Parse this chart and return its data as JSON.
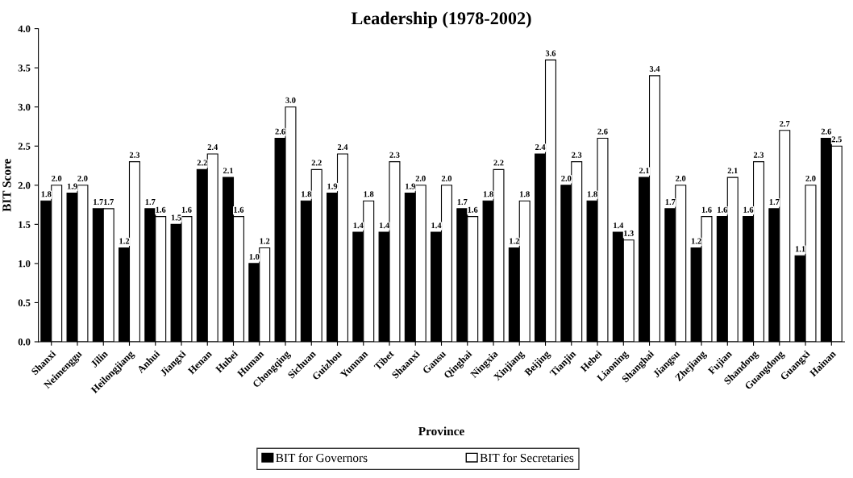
{
  "chart_data": {
    "type": "bar",
    "title": "Leadership (1978-2002)",
    "xlabel": "Province",
    "ylabel": "BIT Score",
    "categories": [
      "Shanxi",
      "Neimenggu",
      "Jilin",
      "Heilongjiang",
      "Anhui",
      "Jiangxi",
      "Henan",
      "Hubei",
      "Human",
      "Chongqing",
      "Sichuan",
      "Guizhou",
      "Yunnan",
      "Tibet",
      "Shaanxi",
      "Gansu",
      "Qinghai",
      "Ningxia",
      "Xinjiang",
      "Beijing",
      "Tianjin",
      "Hebei",
      "Liaoning",
      "Shanghai",
      "Jiangsu",
      "Zhejiang",
      "Fujian",
      "Shandong",
      "Guangdong",
      "Guangxi",
      "Hainan"
    ],
    "series": [
      {
        "name": "BIT for Governors",
        "color": "#000000",
        "values": [
          1.8,
          1.9,
          1.7,
          1.2,
          1.7,
          1.5,
          2.2,
          2.1,
          1.0,
          2.6,
          1.8,
          1.9,
          1.4,
          1.4,
          1.9,
          1.4,
          1.7,
          1.8,
          1.2,
          2.4,
          2.0,
          1.8,
          1.4,
          2.1,
          1.7,
          1.2,
          1.6,
          1.6,
          1.7,
          1.1,
          2.6
        ],
        "value_labels": [
          "1.8",
          "1.9",
          "1.7",
          "1.2",
          "1.7",
          "1.5",
          "2.2",
          "2.1",
          "1.0",
          "2.6",
          "1.8",
          "1.9",
          "1.4",
          "1.4",
          "1.9",
          "1.4",
          "1.7",
          "1.8",
          "1.2",
          "2.4",
          "2.0",
          "1.8",
          "1.4",
          "2.1",
          "1.7",
          "1.2",
          "1.6",
          "1.6",
          "1.7",
          "1.1",
          "2.6"
        ]
      },
      {
        "name": "BIT for Secretaries",
        "color": "#ffffff",
        "values": [
          2.0,
          2.0,
          1.7,
          2.3,
          1.6,
          1.6,
          2.4,
          1.6,
          1.2,
          3.0,
          2.2,
          2.4,
          1.8,
          2.3,
          2.0,
          2.0,
          1.6,
          2.2,
          1.8,
          3.6,
          2.3,
          2.6,
          1.3,
          3.4,
          2.0,
          1.6,
          2.1,
          2.3,
          2.7,
          2.0,
          2.5
        ],
        "value_labels": [
          "2.0",
          "2.0",
          "1.7",
          "2.3",
          "1.6",
          "1.6",
          "2.4",
          "1.6",
          "1.2",
          "3.0",
          "2.2",
          "2.4",
          "1.8",
          "2.3",
          "2.0",
          "2.0",
          "1.6",
          "2.2",
          "1.8",
          "3.6",
          "2.3",
          "2.6",
          "1.3",
          "3.4",
          "2.0",
          "1.6",
          "2.1",
          "2.3",
          "2.7",
          "2.0",
          "2.5"
        ]
      }
    ],
    "ylim": [
      0,
      4
    ],
    "yticks": [
      {
        "value": 0,
        "label": "0.0"
      },
      {
        "value": 0.5,
        "label": "0.5"
      },
      {
        "value": 1,
        "label": "1.0"
      },
      {
        "value": 1.5,
        "label": "1.5"
      },
      {
        "value": 2,
        "label": "2.0"
      },
      {
        "value": 2.5,
        "label": "2.5"
      },
      {
        "value": 3,
        "label": "3.0"
      },
      {
        "value": 3.5,
        "label": "3.5"
      },
      {
        "value": 4,
        "label": "4.0"
      }
    ],
    "legend": "bottom",
    "grid": false
  }
}
